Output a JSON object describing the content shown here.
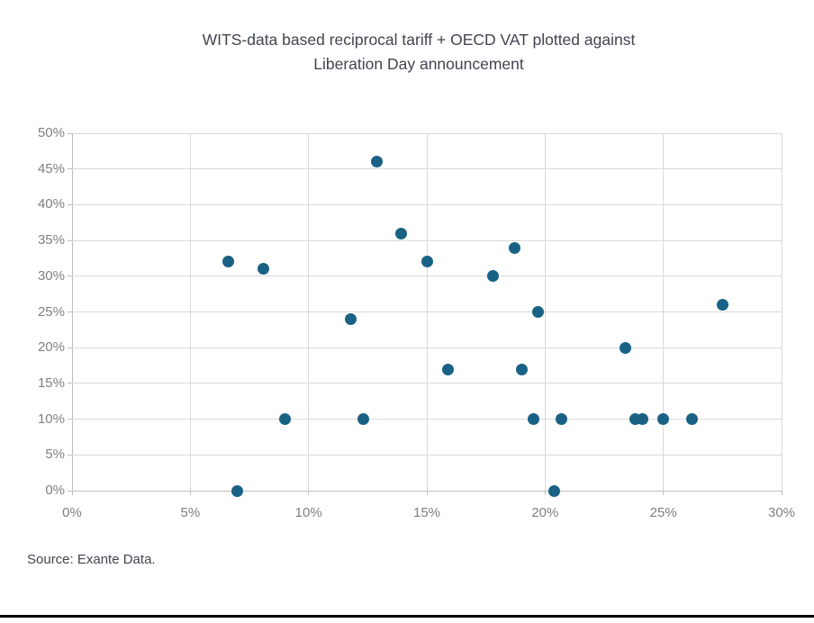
{
  "page": {
    "title_line1": "WITS-data based reciprocal tariff + OECD VAT plotted against",
    "title_line2": "Liberation Day announcement",
    "source": "Source: Exante Data."
  },
  "chart_data": {
    "type": "scatter",
    "title": "WITS-data based reciprocal tariff + OECD VAT plotted against Liberation Day announcement",
    "xlabel": "",
    "ylabel": "",
    "xlim": [
      0,
      30
    ],
    "ylim": [
      0,
      50
    ],
    "grid": true,
    "legend": "none",
    "x_tick_values": [
      0,
      5,
      10,
      15,
      20,
      25,
      30
    ],
    "x_tick_labels": [
      "0%",
      "5%",
      "10%",
      "15%",
      "20%",
      "25%",
      "30%"
    ],
    "y_tick_values": [
      0,
      5,
      10,
      15,
      20,
      25,
      30,
      35,
      40,
      45,
      50
    ],
    "y_tick_labels": [
      "0%",
      "5%",
      "10%",
      "15%",
      "20%",
      "25%",
      "30%",
      "35%",
      "40%",
      "45%",
      "50%"
    ],
    "points": [
      {
        "x": 6.6,
        "y": 32
      },
      {
        "x": 7.0,
        "y": 0
      },
      {
        "x": 8.1,
        "y": 31
      },
      {
        "x": 9.0,
        "y": 10
      },
      {
        "x": 11.8,
        "y": 24
      },
      {
        "x": 12.3,
        "y": 10
      },
      {
        "x": 12.9,
        "y": 46
      },
      {
        "x": 13.9,
        "y": 36
      },
      {
        "x": 15.0,
        "y": 32
      },
      {
        "x": 15.9,
        "y": 17
      },
      {
        "x": 17.8,
        "y": 30
      },
      {
        "x": 18.7,
        "y": 34
      },
      {
        "x": 19.0,
        "y": 17
      },
      {
        "x": 19.5,
        "y": 10
      },
      {
        "x": 19.7,
        "y": 25
      },
      {
        "x": 20.4,
        "y": 0
      },
      {
        "x": 20.7,
        "y": 10
      },
      {
        "x": 23.4,
        "y": 20
      },
      {
        "x": 23.8,
        "y": 10
      },
      {
        "x": 24.1,
        "y": 10
      },
      {
        "x": 25.0,
        "y": 10
      },
      {
        "x": 26.2,
        "y": 10
      },
      {
        "x": 27.5,
        "y": 26
      }
    ],
    "colors": {
      "marker": "#1a6285",
      "gridline": "#d9d9d9",
      "axis_line": "#bfbfbf",
      "title_text": "#404550",
      "tick_text": "#7f7f7f"
    }
  }
}
